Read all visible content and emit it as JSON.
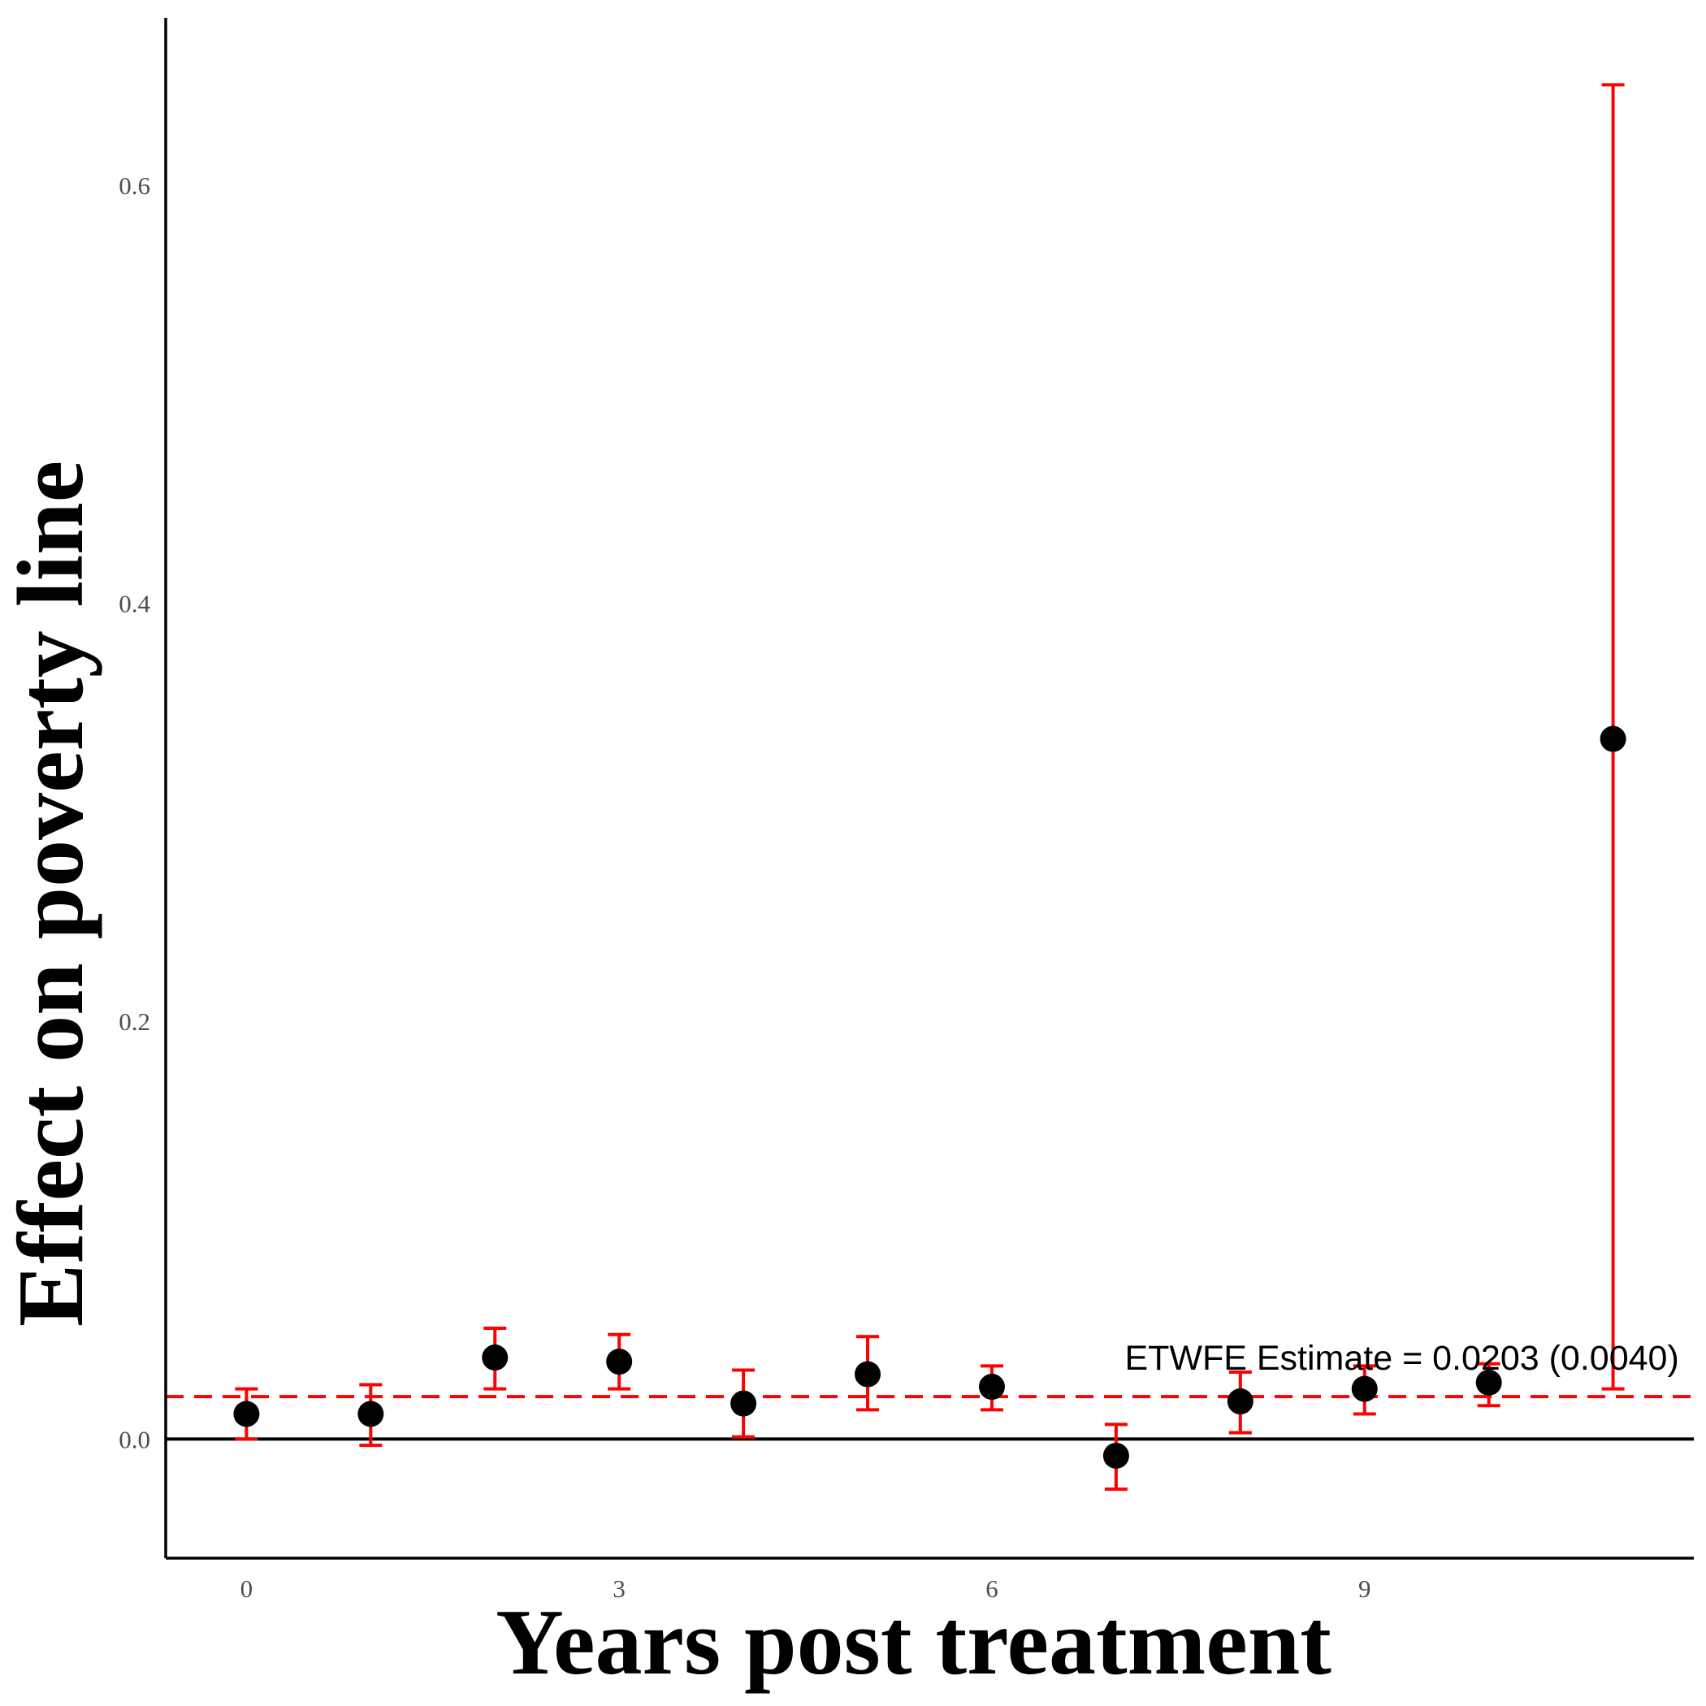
{
  "chart_data": {
    "type": "scatter",
    "xlabel": "Years post treatment",
    "ylabel": "Effect on poverty line",
    "x_ticks": [
      0,
      3,
      6,
      9
    ],
    "y_ticks": [
      0.0,
      0.2,
      0.4,
      0.6
    ],
    "x_tick_labels": [
      "0",
      "3",
      "6",
      "9"
    ],
    "y_tick_labels": [
      "0.0",
      "0.2",
      "0.4",
      "0.6"
    ],
    "xlim": [
      -0.65,
      11.65
    ],
    "ylim": [
      -0.057,
      0.68
    ],
    "grid": false,
    "points": [
      {
        "x": 0,
        "y": 0.012,
        "lo": 0.0,
        "hi": 0.024
      },
      {
        "x": 1,
        "y": 0.012,
        "lo": -0.003,
        "hi": 0.026
      },
      {
        "x": 2,
        "y": 0.039,
        "lo": 0.024,
        "hi": 0.053
      },
      {
        "x": 3,
        "y": 0.037,
        "lo": 0.024,
        "hi": 0.05
      },
      {
        "x": 4,
        "y": 0.017,
        "lo": 0.001,
        "hi": 0.033
      },
      {
        "x": 5,
        "y": 0.031,
        "lo": 0.014,
        "hi": 0.049
      },
      {
        "x": 6,
        "y": 0.025,
        "lo": 0.014,
        "hi": 0.035
      },
      {
        "x": 7,
        "y": -0.008,
        "lo": -0.024,
        "hi": 0.007
      },
      {
        "x": 8,
        "y": 0.018,
        "lo": 0.003,
        "hi": 0.032
      },
      {
        "x": 9,
        "y": 0.024,
        "lo": 0.012,
        "hi": 0.035
      },
      {
        "x": 10,
        "y": 0.027,
        "lo": 0.016,
        "hi": 0.036
      },
      {
        "x": 11,
        "y": 0.335,
        "lo": 0.024,
        "hi": 0.648
      }
    ],
    "reference_lines": {
      "zero": 0.0,
      "estimate": 0.0203
    },
    "annotation": {
      "text": "ETWFE Estimate = 0.0203 (0.0040)",
      "x": 9.3,
      "y": 0.039
    },
    "colors": {
      "points": "#000000",
      "error_bars": "#ff0000",
      "estimate_line": "#ff0000",
      "zero_line": "#000000",
      "axis": "#000000",
      "tick_labels": "#4d4d4d"
    }
  }
}
